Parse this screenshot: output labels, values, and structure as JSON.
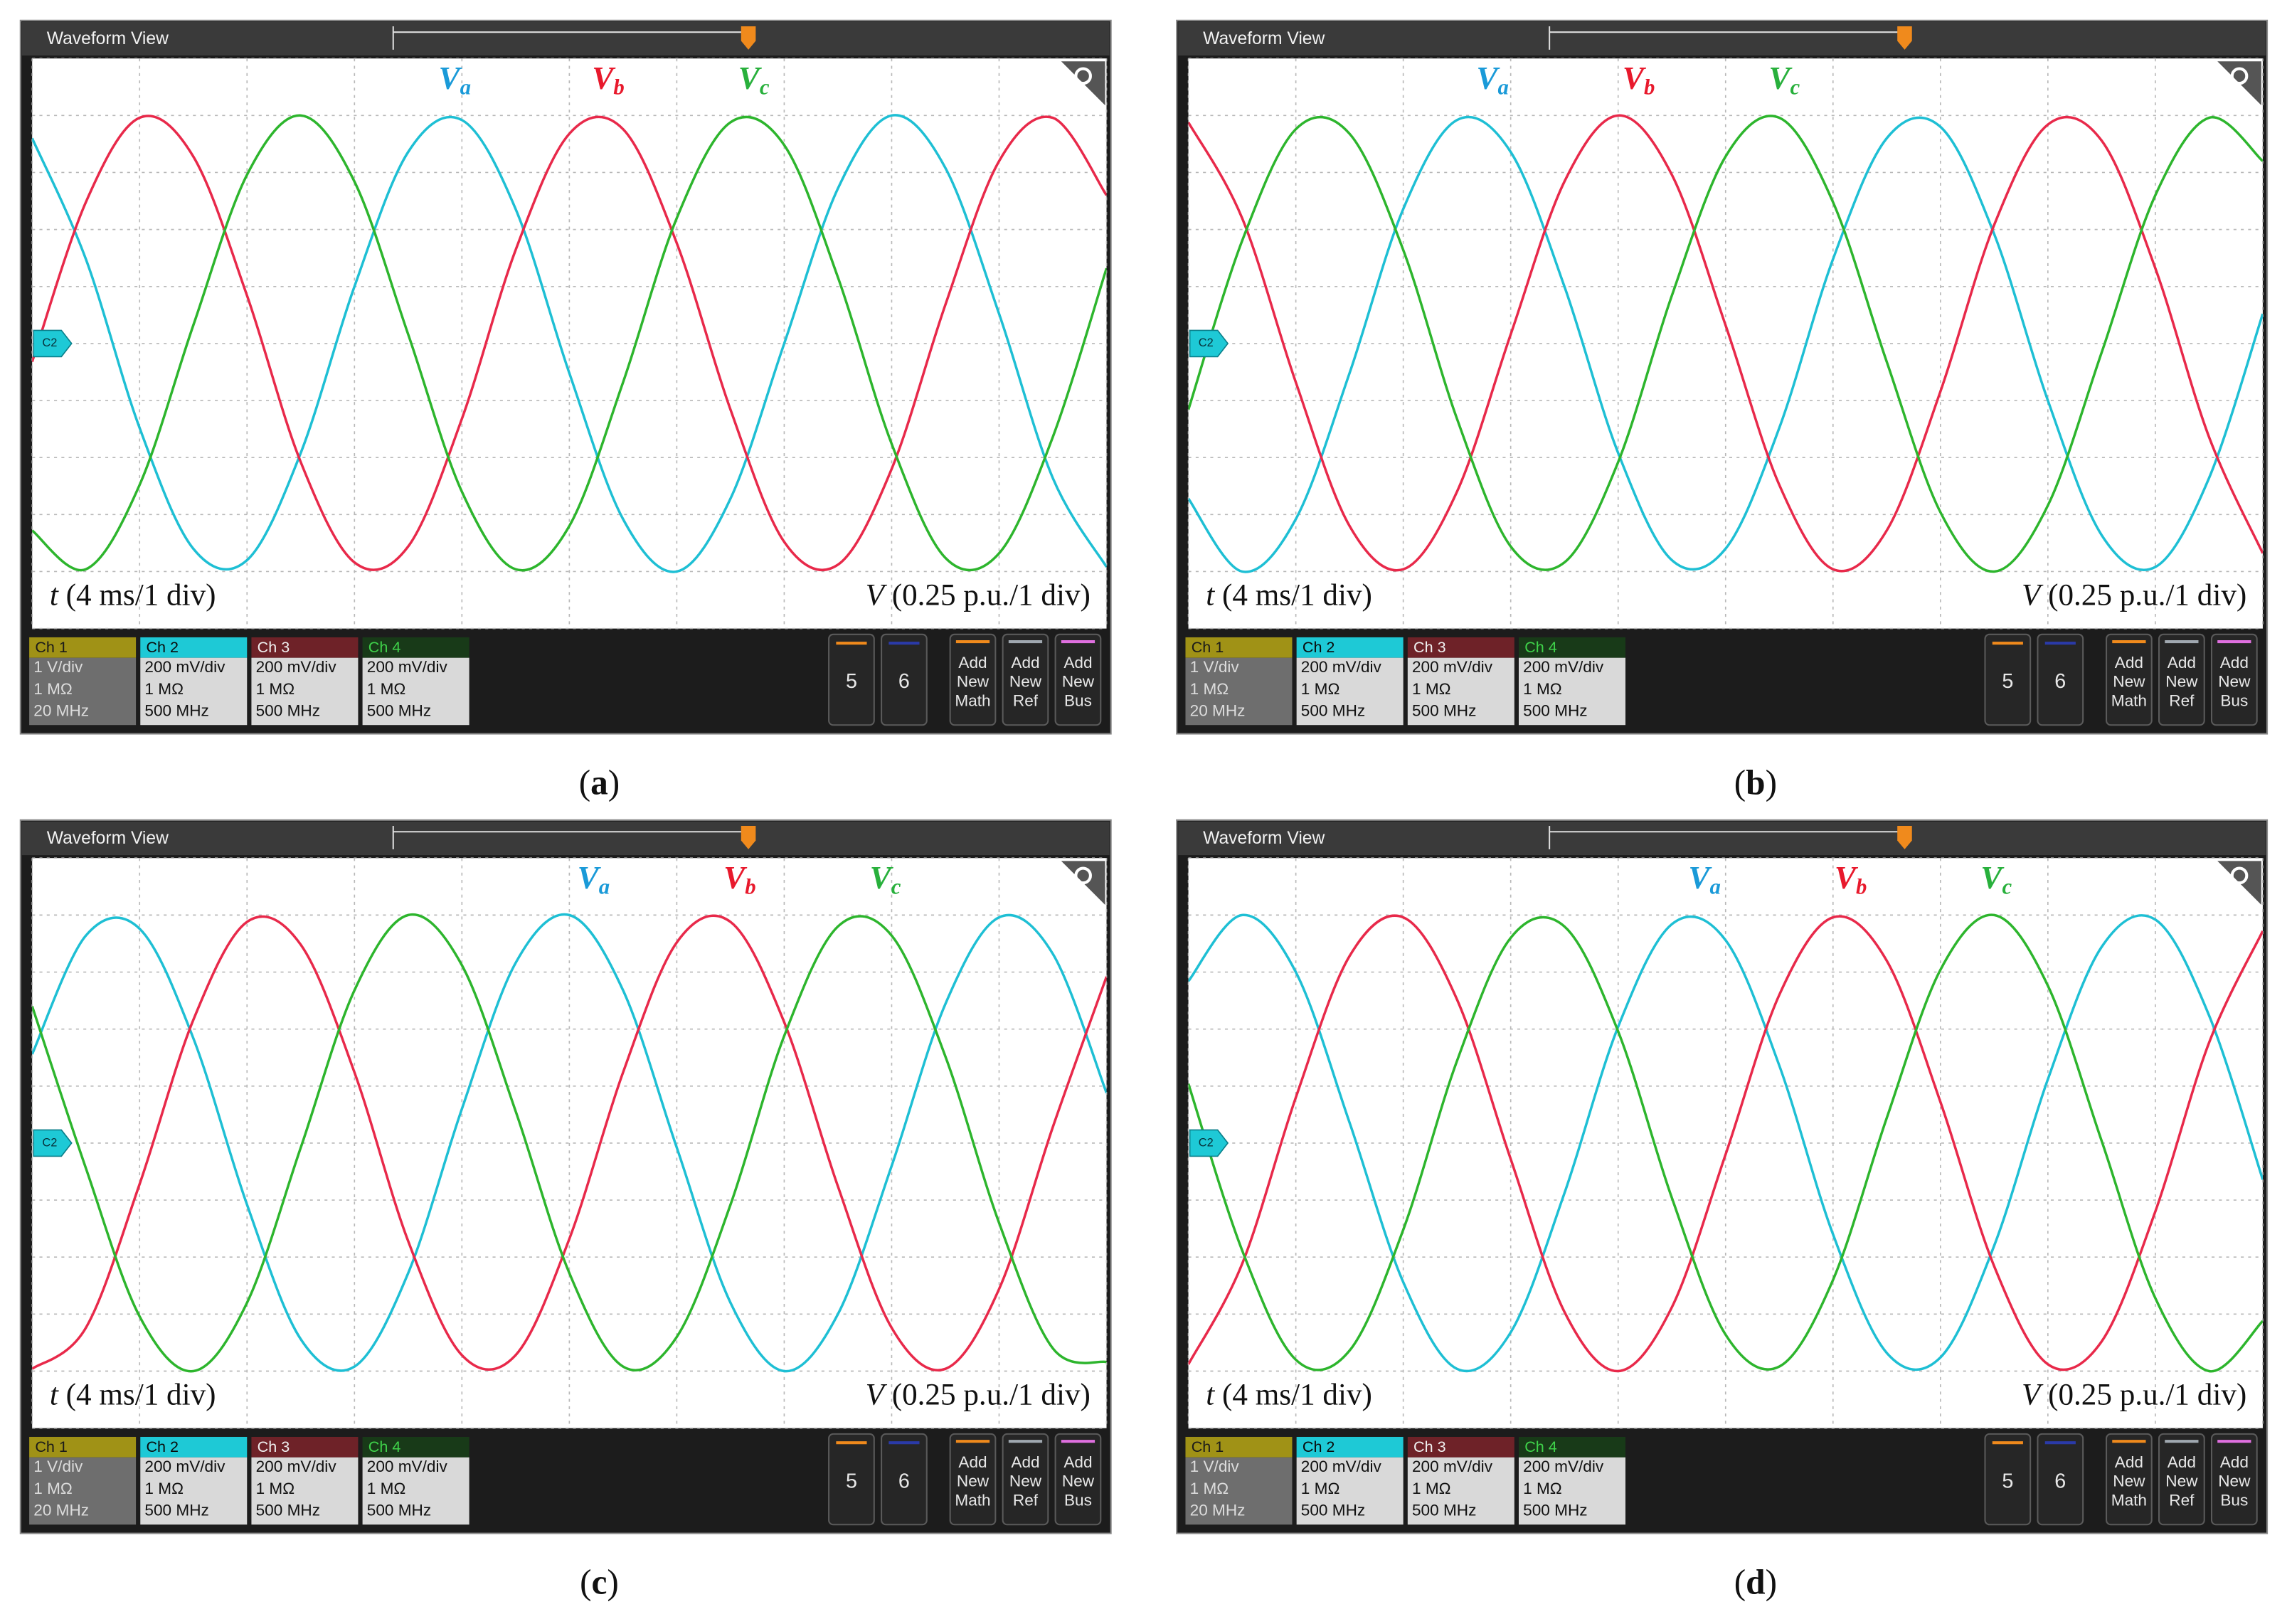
{
  "chart_data": [
    {
      "type": "line",
      "window_title": "Waveform View",
      "channel_marker": "C2",
      "xlabel": "t (4 ms/1 div)",
      "ylabel": "V (0.25 p.u./1 div)",
      "panel_label": "(a)",
      "x": [
        0,
        2,
        4,
        6,
        8,
        10,
        12,
        14,
        16,
        18,
        20,
        22,
        24,
        26,
        28,
        30,
        32,
        34,
        36,
        38,
        40
      ],
      "xlim": [
        0,
        40
      ],
      "ylim": [
        -1.25,
        1.25
      ],
      "xticks": [
        0,
        4,
        8,
        12,
        16,
        20,
        24,
        28,
        32,
        36,
        40
      ],
      "yticks": [
        -1.25,
        -1,
        -0.75,
        -0.5,
        -0.25,
        0,
        0.25,
        0.5,
        0.75,
        1,
        1.25
      ],
      "grid": true,
      "series": [
        {
          "name": "Va",
          "color": "#1ebfd4",
          "label_color": "#1a9ad8",
          "values": [
            0.9,
            0.37,
            -0.37,
            -0.9,
            -0.95,
            -0.48,
            0.25,
            0.84,
            0.98,
            0.59,
            -0.13,
            -0.77,
            -1.0,
            -0.68,
            0.0,
            0.68,
            1.0,
            0.77,
            0.13,
            -0.59,
            -0.98
          ]
        },
        {
          "name": "Vb",
          "color": "#e8294a",
          "label_color": "#e8192c",
          "values": [
            -0.08,
            0.62,
            0.99,
            0.82,
            0.21,
            -0.52,
            -0.96,
            -0.89,
            -0.33,
            0.41,
            0.92,
            0.94,
            0.44,
            -0.29,
            -0.87,
            -0.97,
            -0.55,
            0.17,
            0.8,
            0.99,
            0.65
          ]
        },
        {
          "name": "Vc",
          "color": "#2db52d",
          "label_color": "#28b03c",
          "values": [
            -0.82,
            -0.99,
            -0.62,
            0.08,
            0.74,
            1.0,
            0.71,
            0.04,
            -0.65,
            -0.99,
            -0.8,
            -0.17,
            0.55,
            0.97,
            0.87,
            0.29,
            -0.44,
            -0.94,
            -0.92,
            -0.41,
            0.33
          ]
        }
      ],
      "channels": [
        {
          "name": "Ch 1",
          "lines": [
            "1 V/div",
            "1 MΩ",
            "20 MHz"
          ]
        },
        {
          "name": "Ch 2",
          "lines": [
            "200 mV/div",
            "1 MΩ",
            "500 MHz"
          ]
        },
        {
          "name": "Ch 3",
          "lines": [
            "200 mV/div",
            "1 MΩ",
            "500 MHz"
          ]
        },
        {
          "name": "Ch 4",
          "lines": [
            "200 mV/div",
            "1 MΩ",
            "500 MHz"
          ]
        }
      ],
      "buttons": [
        "5",
        "6"
      ],
      "add_buttons": [
        [
          "Add",
          "New",
          "Math"
        ],
        [
          "Add",
          "New",
          "Ref"
        ],
        [
          "Add",
          "New",
          "Bus"
        ]
      ]
    },
    {
      "type": "line",
      "window_title": "Waveform View",
      "channel_marker": "C2",
      "xlabel": "t (4 ms/1 div)",
      "ylabel": "V (0.25 p.u./1 div)",
      "panel_label": "(b)",
      "x": [
        0,
        2,
        4,
        6,
        8,
        10,
        12,
        14,
        16,
        18,
        20,
        22,
        24,
        26,
        28,
        30,
        32,
        34,
        36,
        38,
        40
      ],
      "xlim": [
        0,
        40
      ],
      "ylim": [
        -1.25,
        1.25
      ],
      "xticks": [
        0,
        4,
        8,
        12,
        16,
        20,
        24,
        28,
        32,
        36,
        40
      ],
      "yticks": [
        -1.25,
        -1,
        -0.75,
        -0.5,
        -0.25,
        0,
        0.25,
        0.5,
        0.75,
        1,
        1.25
      ],
      "grid": true,
      "series": [
        {
          "name": "Va",
          "color": "#1ebfd4",
          "label_color": "#1a9ad8",
          "values": [
            -0.68,
            -1.0,
            -0.77,
            -0.13,
            0.59,
            0.98,
            0.84,
            0.25,
            -0.48,
            -0.95,
            -0.9,
            -0.37,
            0.37,
            0.9,
            0.95,
            0.48,
            -0.25,
            -0.84,
            -0.98,
            -0.59,
            0.13
          ]
        },
        {
          "name": "Vb",
          "color": "#e8294a",
          "label_color": "#e8192c",
          "values": [
            0.97,
            0.55,
            -0.17,
            -0.8,
            -0.99,
            -0.65,
            0.04,
            0.71,
            1.0,
            0.74,
            0.08,
            -0.62,
            -0.99,
            -0.82,
            -0.21,
            0.52,
            0.96,
            0.89,
            0.33,
            -0.41,
            -0.92
          ]
        },
        {
          "name": "Vc",
          "color": "#2db52d",
          "label_color": "#28b03c",
          "values": [
            -0.29,
            0.45,
            0.94,
            0.92,
            0.41,
            -0.33,
            -0.89,
            -0.96,
            -0.52,
            0.21,
            0.82,
            0.99,
            0.62,
            -0.08,
            -0.74,
            -1.0,
            -0.71,
            -0.04,
            0.65,
            0.99,
            0.8
          ]
        }
      ],
      "channels": [
        {
          "name": "Ch 1",
          "lines": [
            "1 V/div",
            "1 MΩ",
            "20 MHz"
          ]
        },
        {
          "name": "Ch 2",
          "lines": [
            "200 mV/div",
            "1 MΩ",
            "500 MHz"
          ]
        },
        {
          "name": "Ch 3",
          "lines": [
            "200 mV/div",
            "1 MΩ",
            "500 MHz"
          ]
        },
        {
          "name": "Ch 4",
          "lines": [
            "200 mV/div",
            "1 MΩ",
            "500 MHz"
          ]
        }
      ],
      "buttons": [
        "5",
        "6"
      ],
      "add_buttons": [
        [
          "Add",
          "New",
          "Math"
        ],
        [
          "Add",
          "New",
          "Ref"
        ],
        [
          "Add",
          "New",
          "Bus"
        ]
      ]
    },
    {
      "type": "line",
      "window_title": "Waveform View",
      "channel_marker": "C2",
      "xlabel": "t (4 ms/1 div)",
      "ylabel": "V (0.25 p.u./1 div)",
      "panel_label": "(c)",
      "x": [
        0,
        2,
        4,
        6,
        8,
        10,
        12,
        14,
        16,
        18,
        20,
        22,
        24,
        26,
        28,
        30,
        32,
        34,
        36,
        38,
        40
      ],
      "xlim": [
        0,
        40
      ],
      "ylim": [
        -1.25,
        1.25
      ],
      "xticks": [
        0,
        4,
        8,
        12,
        16,
        20,
        24,
        28,
        32,
        36,
        40
      ],
      "yticks": [
        -1.25,
        -1,
        -0.75,
        -0.5,
        -0.25,
        0,
        0.25,
        0.5,
        0.75,
        1,
        1.25
      ],
      "grid": true,
      "series": [
        {
          "name": "Va",
          "color": "#1ebfd4",
          "label_color": "#1a9ad8",
          "values": [
            0.39,
            0.91,
            0.94,
            0.46,
            -0.27,
            -0.86,
            -0.98,
            -0.57,
            0.15,
            0.79,
            1.0,
            0.67,
            -0.02,
            -0.7,
            -1.0,
            -0.75,
            -0.1,
            0.61,
            0.99,
            0.83,
            0.22
          ]
        },
        {
          "name": "Vb",
          "color": "#e8294a",
          "label_color": "#e8192c",
          "values": [
            -0.99,
            -0.81,
            -0.18,
            0.54,
            0.97,
            0.87,
            0.31,
            -0.43,
            -0.93,
            -0.93,
            -0.42,
            0.31,
            0.88,
            0.97,
            0.53,
            -0.19,
            -0.81,
            -0.99,
            -0.64,
            0.07,
            0.73
          ]
        },
        {
          "name": "Vc",
          "color": "#2db52d",
          "label_color": "#28b03c",
          "values": [
            0.6,
            -0.11,
            -0.76,
            -1.0,
            -0.7,
            -0.02,
            0.67,
            1.0,
            0.78,
            0.14,
            -0.57,
            -0.98,
            -0.85,
            -0.27,
            0.47,
            0.95,
            0.91,
            0.38,
            -0.35,
            -0.9,
            -0.96
          ]
        }
      ],
      "channels": [
        {
          "name": "Ch 1",
          "lines": [
            "1 V/div",
            "1 MΩ",
            "20 MHz"
          ]
        },
        {
          "name": "Ch 2",
          "lines": [
            "200 mV/div",
            "1 MΩ",
            "500 MHz"
          ]
        },
        {
          "name": "Ch 3",
          "lines": [
            "200 mV/div",
            "1 MΩ",
            "500 MHz"
          ]
        },
        {
          "name": "Ch 4",
          "lines": [
            "200 mV/div",
            "1 MΩ",
            "500 MHz"
          ]
        }
      ],
      "buttons": [
        "5",
        "6"
      ],
      "add_buttons": [
        [
          "Add",
          "New",
          "Math"
        ],
        [
          "Add",
          "New",
          "Ref"
        ],
        [
          "Add",
          "New",
          "Bus"
        ]
      ]
    },
    {
      "type": "line",
      "window_title": "Waveform View",
      "channel_marker": "C2",
      "xlabel": "t (4 ms/1 div)",
      "ylabel": "V (0.25 p.u./1 div)",
      "panel_label": "(d)",
      "x": [
        0,
        2,
        4,
        6,
        8,
        10,
        12,
        14,
        16,
        18,
        20,
        22,
        24,
        26,
        28,
        30,
        32,
        34,
        36,
        38,
        40
      ],
      "xlim": [
        0,
        40
      ],
      "ylim": [
        -1.25,
        1.25
      ],
      "xticks": [
        0,
        4,
        8,
        12,
        16,
        20,
        24,
        28,
        32,
        36,
        40
      ],
      "yticks": [
        -1.25,
        -1,
        -0.75,
        -0.5,
        -0.25,
        0,
        0.25,
        0.5,
        0.75,
        1,
        1.25
      ],
      "grid": true,
      "series": [
        {
          "name": "Va",
          "color": "#1ebfd4",
          "label_color": "#1a9ad8",
          "values": [
            0.71,
            1.0,
            0.75,
            0.09,
            -0.61,
            -0.99,
            -0.83,
            -0.22,
            0.51,
            0.96,
            0.89,
            0.34,
            -0.4,
            -0.92,
            -0.94,
            -0.45,
            0.28,
            0.86,
            0.98,
            0.56,
            -0.16
          ]
        },
        {
          "name": "Vb",
          "color": "#e8294a",
          "label_color": "#e8192c",
          "values": [
            -0.97,
            -0.53,
            0.2,
            0.82,
            0.99,
            0.63,
            -0.07,
            -0.74,
            -1.0,
            -0.72,
            -0.05,
            0.65,
            0.99,
            0.8,
            0.18,
            -0.54,
            -0.97,
            -0.87,
            -0.3,
            0.44,
            0.93
          ]
        },
        {
          "name": "Vc",
          "color": "#2db52d",
          "label_color": "#28b03c",
          "values": [
            0.26,
            -0.47,
            -0.95,
            -0.91,
            -0.38,
            0.36,
            0.9,
            0.95,
            0.49,
            -0.24,
            -0.84,
            -0.98,
            -0.6,
            0.11,
            0.76,
            1.0,
            0.69,
            0.01,
            -0.68,
            -1.0,
            -0.78
          ]
        }
      ],
      "channels": [
        {
          "name": "Ch 1",
          "lines": [
            "1 V/div",
            "1 MΩ",
            "20 MHz"
          ]
        },
        {
          "name": "Ch 2",
          "lines": [
            "200 mV/div",
            "1 MΩ",
            "500 MHz"
          ]
        },
        {
          "name": "Ch 3",
          "lines": [
            "200 mV/div",
            "1 MΩ",
            "500 MHz"
          ]
        },
        {
          "name": "Ch 4",
          "lines": [
            "200 mV/div",
            "1 MΩ",
            "500 MHz"
          ]
        }
      ],
      "buttons": [
        "5",
        "6"
      ],
      "add_buttons": [
        [
          "Add",
          "New",
          "Math"
        ],
        [
          "Add",
          "New",
          "Ref"
        ],
        [
          "Add",
          "New",
          "Bus"
        ]
      ]
    }
  ]
}
